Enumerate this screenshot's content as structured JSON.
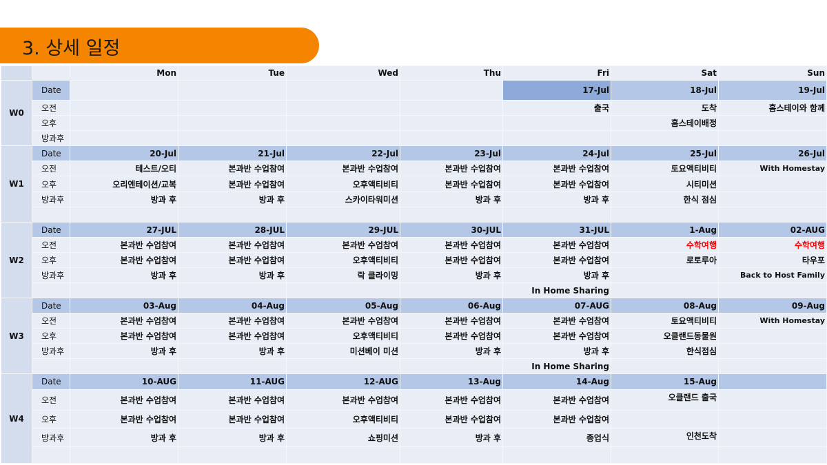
{
  "title": "3. 상세 일정",
  "colors": {
    "banner": "#f58400",
    "date_row": "#b4c7e7",
    "highlight_date": "#8eaadb",
    "alert_text": "#ff0000"
  },
  "days": [
    "Mon",
    "Tue",
    "Wed",
    "Thu",
    "Fri",
    "Sat",
    "Sun"
  ],
  "row_labels": {
    "date": "Date",
    "am": "오전",
    "pm": "오후",
    "after": "방과후"
  },
  "weeks": [
    {
      "label": "W0",
      "dates": [
        "",
        "",
        "",
        "",
        "17-Jul",
        "18-Jul",
        "19-Jul"
      ],
      "am": [
        "",
        "",
        "",
        "",
        "출국",
        "도착",
        "홈스테이와 함께"
      ],
      "pm": [
        "",
        "",
        "",
        "",
        "",
        "홈스테이배정",
        ""
      ],
      "after": [
        "",
        "",
        "",
        "",
        "",
        "",
        ""
      ]
    },
    {
      "label": "W1",
      "dates": [
        "20-Jul",
        "21-Jul",
        "22-Jul",
        "23-Jul",
        "24-Jul",
        "25-Jul",
        "26-Jul"
      ],
      "am": [
        "테스트/오티",
        "본과반 수업참여",
        "본과반 수업참여",
        "본과반 수업참여",
        "본과반 수업참여",
        "토요액티비티",
        "With Homestay"
      ],
      "pm": [
        "오리엔테이션/교복",
        "본과반 수업참여",
        "오후액티비티",
        "본과반 수업참여",
        "본과반 수업참여",
        "시티미션",
        ""
      ],
      "after": [
        "방과 후",
        "방과 후",
        "스카이타워미션",
        "방과 후",
        "방과 후",
        "한식 점심",
        ""
      ],
      "extra": [
        "",
        "",
        "",
        "",
        "",
        "",
        ""
      ]
    },
    {
      "label": "W2",
      "dates": [
        "27-JUL",
        "28-JUL",
        "29-JUL",
        "30-JUL",
        "31-JUL",
        "1-Aug",
        "02-AUG"
      ],
      "am": [
        "본과반 수업참여",
        "본과반 수업참여",
        "본과반 수업참여",
        "본과반 수업참여",
        "본과반 수업참여",
        "수학여행",
        "수학여행"
      ],
      "pm": [
        "본과반 수업참여",
        "본과반 수업참여",
        "오후액티비티",
        "본과반 수업참여",
        "본과반 수업참여",
        "로토루아",
        "타우포"
      ],
      "after": [
        "방과 후",
        "방과 후",
        "락 클라이밍",
        "방과 후",
        "방과 후",
        "",
        "Back to Host Family"
      ],
      "extra": [
        "",
        "",
        "",
        "",
        "In Home Sharing",
        "",
        ""
      ],
      "alert_am": [
        5,
        6
      ]
    },
    {
      "label": "W3",
      "dates": [
        "03-Aug",
        "04-Aug",
        "05-Aug",
        "06-Aug",
        "07-AUG",
        "08-Aug",
        "09-Aug"
      ],
      "am": [
        "본과반 수업참여",
        "본과반 수업참여",
        "본과반 수업참여",
        "본과반 수업참여",
        "본과반 수업참여",
        "토요액티비티",
        "With Homestay"
      ],
      "pm": [
        "본과반 수업참여",
        "본과반 수업참여",
        "오후액티비티",
        "본과반 수업참여",
        "본과반 수업참여",
        "오클랜드동물원",
        ""
      ],
      "after": [
        "방과 후",
        "방과 후",
        "미션베이 미션",
        "방과 후",
        "방과 후",
        "한식점심",
        ""
      ],
      "extra": [
        "",
        "",
        "",
        "",
        "In Home Sharing",
        "",
        ""
      ]
    },
    {
      "label": "W4",
      "dates": [
        "10-AUG",
        "11-AUG",
        "12-AUG",
        "13-Aug",
        "14-Aug",
        "15-Aug",
        ""
      ],
      "am": [
        "본과반 수업참여",
        "본과반 수업참여",
        "본과반 수업참여",
        "본과반 수업참여",
        "본과반 수업참여",
        "오클랜드 출국",
        ""
      ],
      "pm": [
        "본과반 수업참여",
        "본과반 수업참여",
        "오후액티비티",
        "본과반 수업참여",
        "본과반 수업참여",
        "",
        ""
      ],
      "after": [
        "방과 후",
        "방과 후",
        "쇼핑미션",
        "방과 후",
        "종업식",
        "인천도착",
        ""
      ],
      "extra": [
        "",
        "",
        "",
        "",
        "",
        "",
        ""
      ]
    }
  ]
}
